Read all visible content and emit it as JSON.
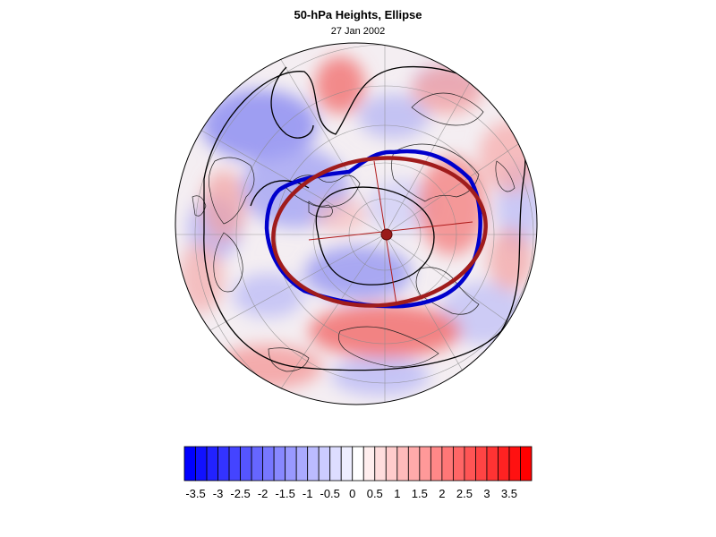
{
  "title": "50-hPa Heights, Ellipse",
  "subtitle": "27 Jan 2002",
  "colorbar": {
    "labels": [
      "-3.5",
      "-3",
      "-2.5",
      "-2",
      "-1.5",
      "-1",
      "-0.5",
      "0",
      "0.5",
      "1",
      "1.5",
      "2",
      "2.5",
      "3",
      "3.5"
    ],
    "min": -3.75,
    "max": 3.75,
    "step": 0.25,
    "negative_color": "#0000ff",
    "neutral_color": "#ffffff",
    "positive_color": "#ff0000"
  },
  "map": {
    "projection": "polar-stereographic-north",
    "ellipse_colors": [
      "#0000cc",
      "#a01c1c"
    ],
    "contour_color": "#000000"
  }
}
